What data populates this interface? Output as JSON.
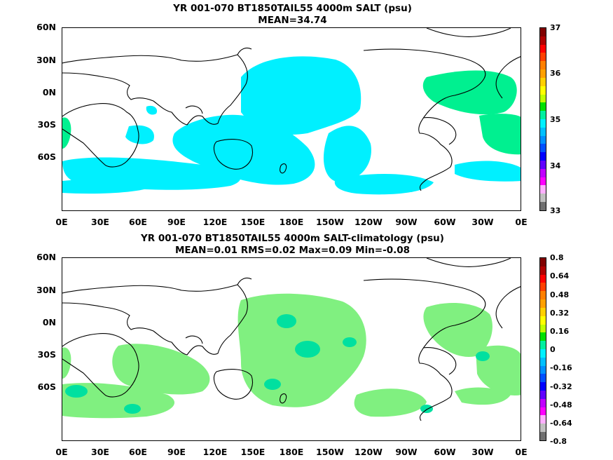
{
  "panels": [
    {
      "title_line1": "YR 001-070 BT1850TAIL55 4000m SALT (psu)",
      "title_line2": "MEAN=34.74",
      "fill_color": "#00f0ff",
      "colorbar_labels": [
        "37",
        "36",
        "35",
        "34",
        "33"
      ],
      "colorbar_colors": [
        "#800000",
        "#b00000",
        "#ff0000",
        "#ff4000",
        "#ff8000",
        "#ffa000",
        "#ffd000",
        "#ffff00",
        "#c0ff00",
        "#00e000",
        "#00f0a0",
        "#00f0ff",
        "#00c0ff",
        "#0090ff",
        "#0050ff",
        "#0000ff",
        "#6000ff",
        "#c000ff",
        "#ff00ff",
        "#ffb0ff",
        "#c0c0c0",
        "#707070"
      ]
    },
    {
      "title_line1": "YR 001-070 BT1850TAIL55 4000m SALT-climatology (psu)",
      "title_line2": "MEAN=0.01   RMS=0.02   Max=0.09   Min=-0.08",
      "fill_color": "#80f080",
      "colorbar_labels": [
        "0.8",
        "0.64",
        "0.48",
        "0.32",
        "0.16",
        "0",
        "-0.16",
        "-0.32",
        "-0.48",
        "-0.64",
        "-0.8"
      ],
      "colorbar_colors": [
        "#800000",
        "#b00000",
        "#ff0000",
        "#ff4000",
        "#ff8000",
        "#ffa000",
        "#ffd000",
        "#ffff00",
        "#c0ff00",
        "#00e000",
        "#00f0a0",
        "#00f0ff",
        "#00c0ff",
        "#0090ff",
        "#0050ff",
        "#0000ff",
        "#6000ff",
        "#c000ff",
        "#ff00ff",
        "#ffb0ff",
        "#c0c0c0",
        "#707070"
      ]
    }
  ],
  "lat_labels": [
    "60N",
    "30N",
    "0N",
    "30S",
    "60S"
  ],
  "lon_labels": [
    "0E",
    "30E",
    "60E",
    "90E",
    "120E",
    "150E",
    "180E",
    "150W",
    "120W",
    "90W",
    "60W",
    "30W",
    "0E"
  ]
}
